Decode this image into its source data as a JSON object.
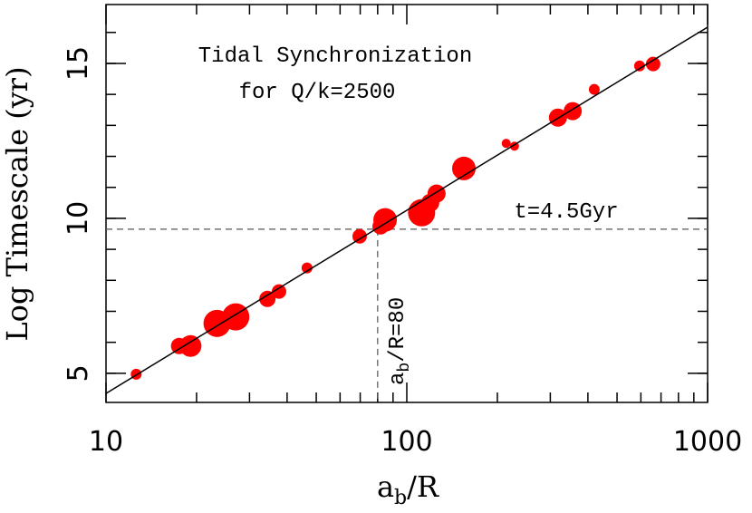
{
  "chart_data": {
    "type": "scatter",
    "title_lines": [
      "Tidal Synchronization",
      "for Q/k=2500"
    ],
    "x_label": [
      "a",
      "b",
      "/R"
    ],
    "y_label": "Log Timescale (yr)",
    "xlim": [
      10,
      1000
    ],
    "ylim": [
      4.06,
      16.9
    ],
    "log_x": true,
    "xticks": [
      10,
      100,
      1000
    ],
    "xminor_ticks": [
      20,
      30,
      40,
      50,
      60,
      70,
      80,
      90,
      200,
      300,
      400,
      500,
      600,
      700,
      800,
      900
    ],
    "yticks": [
      5,
      10,
      15
    ],
    "yminor_ticks": [
      5,
      6,
      7,
      8,
      9,
      10,
      11,
      12,
      13,
      14,
      15,
      16
    ],
    "color": "#ff0000",
    "x": [
      12.6,
      17.5,
      19.1,
      23.4,
      27.0,
      34.4,
      37.6,
      46.6,
      69.7,
      81.8,
      84.7,
      112,
      119.6,
      125.6,
      154.8,
      214,
      228,
      318,
      356,
      420,
      594,
      659
    ],
    "y": [
      4.97,
      5.88,
      5.88,
      6.61,
      6.82,
      7.4,
      7.64,
      8.4,
      9.42,
      9.74,
      9.95,
      10.18,
      10.5,
      10.8,
      11.61,
      12.42,
      12.33,
      13.25,
      13.46,
      14.16,
      14.92,
      14.98
    ],
    "sizes": [
      6,
      9,
      12,
      15,
      15,
      9,
      8,
      6,
      8,
      9,
      13,
      15,
      10,
      10,
      13,
      5,
      5,
      10,
      10,
      6,
      6,
      8
    ],
    "fit_line": {
      "x": [
        10,
        1000
      ],
      "y": [
        4.35,
        16.17
      ]
    },
    "hline": {
      "value": 9.65,
      "label": "t=4.5Gyr"
    },
    "vline": {
      "value": 80,
      "label": [
        "a",
        "b",
        "/R=80"
      ]
    }
  }
}
